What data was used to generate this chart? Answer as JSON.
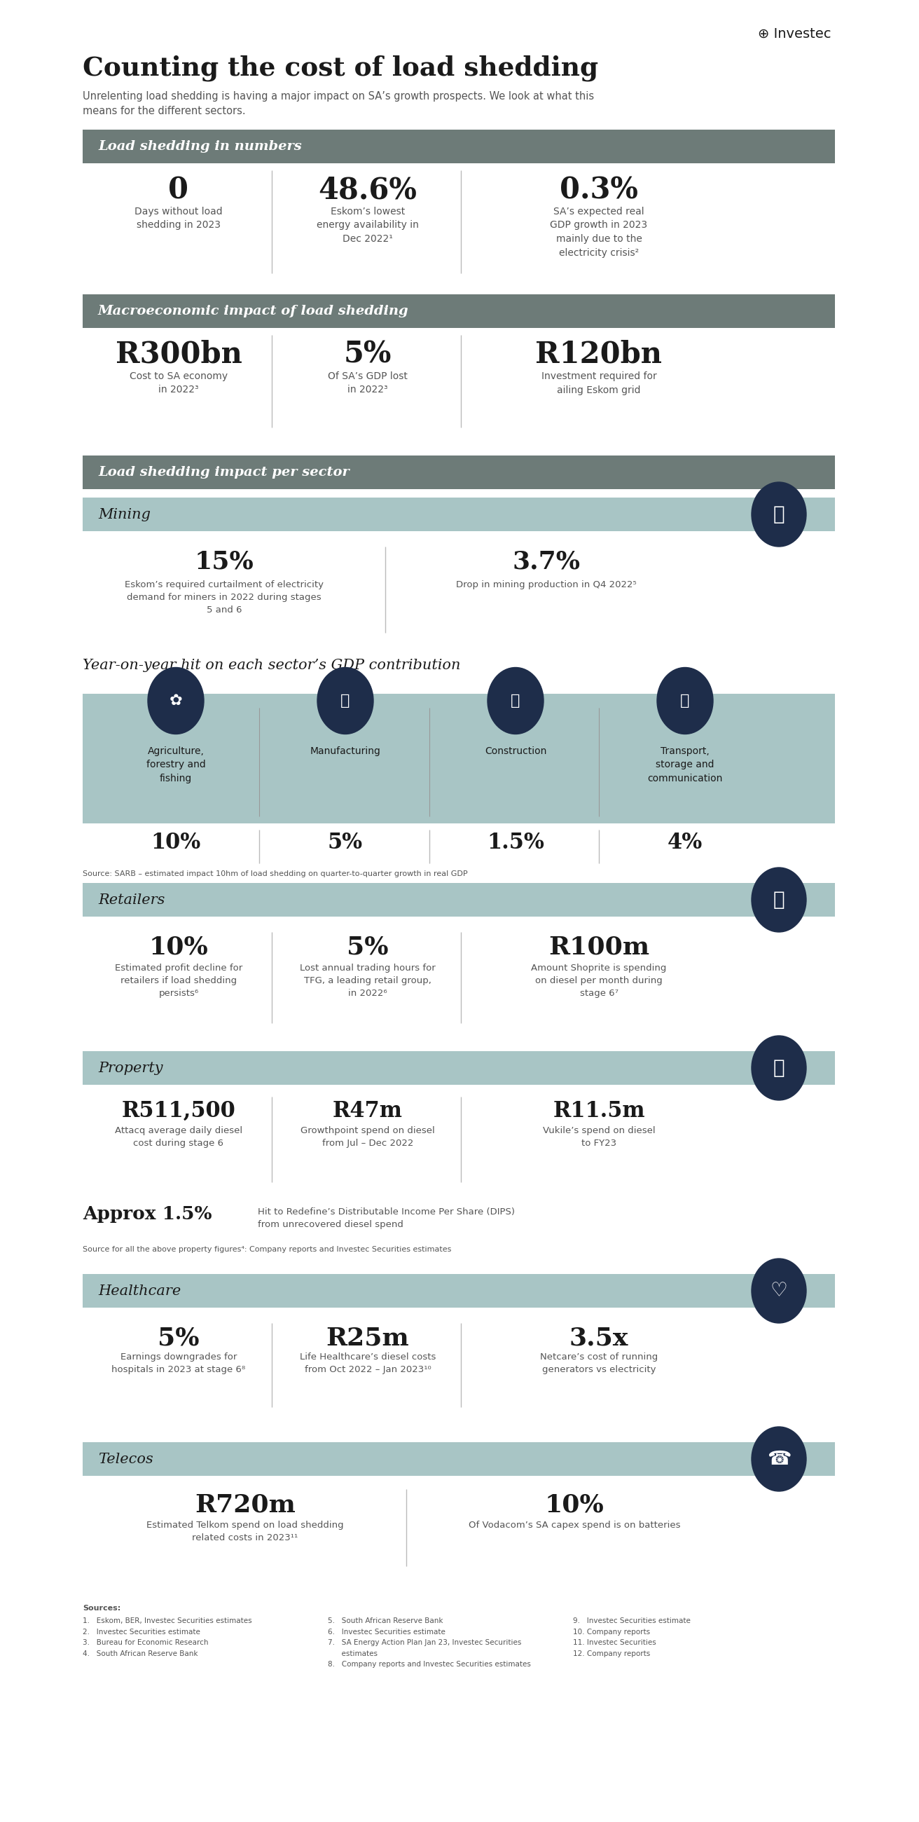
{
  "title": "Counting the cost of load shedding",
  "subtitle": "Unrelenting load shedding is having a major impact on SA’s growth prospects. We look at what this\nmeans for the different sectors.",
  "logo_text": "⊕ Investec",
  "bg_color": "#ffffff",
  "header_bg": "#6d7b78",
  "light_teal": "#a8c5c5",
  "dark_navy": "#1e2d4a",
  "section1_header": "Load shedding in numbers",
  "section1_stats": [
    {
      "value": "0",
      "label": "Days without load\nshedding in 2023"
    },
    {
      "value": "48.6%",
      "label": "Eskom’s lowest\nenergy availability in\nDec 2022¹"
    },
    {
      "value": "0.3%",
      "label": "SA’s expected real\nGDP growth in 2023\nmainly due to the\nelectricity crisis²"
    }
  ],
  "section2_header": "Macroeconomic impact of load shedding",
  "section2_stats": [
    {
      "value": "R300bn",
      "label": "Cost to SA economy\nin 2022³"
    },
    {
      "value": "5%",
      "label": "Of SA’s GDP lost\nin 2022³"
    },
    {
      "value": "R120bn",
      "label": "Investment required for\nailing Eskom grid"
    }
  ],
  "section3_header": "Load shedding impact per sector",
  "mining_header": "Mining",
  "mining_stats": [
    {
      "value": "15%",
      "label": "Eskom’s required curtailment of electricity\ndemand for miners in 2022 during stages\n5 and 6"
    },
    {
      "value": "3.7%",
      "label": "Drop in mining production in Q4 2022⁵"
    }
  ],
  "gdp_title": "Year-on-year hit on each sector’s GDP contribution",
  "gdp_sectors": [
    {
      "name": "Agriculture,\nforestry and\nfishing",
      "value": "10%"
    },
    {
      "name": "Manufacturing",
      "value": "5%"
    },
    {
      "name": "Construction",
      "value": "1.5%"
    },
    {
      "name": "Transport,\nstorage and\ncommunication",
      "value": "4%"
    }
  ],
  "gdp_source": "Source: SARB – estimated impact 10hm of load shedding on quarter-to-quarter growth in real GDP",
  "retailers_header": "Retailers",
  "retailers_stats": [
    {
      "value": "10%",
      "label": "Estimated profit decline for\nretailers if load shedding\npersists⁶"
    },
    {
      "value": "5%",
      "label": "Lost annual trading hours for\nTFG, a leading retail group,\nin 2022⁶"
    },
    {
      "value": "R100m",
      "label": "Amount Shoprite is spending\non diesel per month during\nstage 6⁷"
    }
  ],
  "property_header": "Property",
  "property_stats": [
    {
      "value": "R511,500",
      "label": "Attacq average daily diesel\ncost during stage 6"
    },
    {
      "value": "R47m",
      "label": "Growthpoint spend on diesel\nfrom Jul – Dec 2022"
    },
    {
      "value": "R11.5m",
      "label": "Vukile’s spend on diesel\nto FY23"
    }
  ],
  "property_extra": "Approx 1.5%",
  "property_extra_label": "Hit to Redefine’s Distributable Income Per Share (DIPS)\nfrom unrecovered diesel spend",
  "property_source": "Source for all the above property figures⁴: Company reports and Investec Securities estimates",
  "healthcare_header": "Healthcare",
  "healthcare_stats": [
    {
      "value": "5%",
      "label": "Earnings downgrades for\nhospitals in 2023 at stage 6⁸"
    },
    {
      "value": "R25m",
      "label": "Life Healthcare’s diesel costs\nfrom Oct 2022 – Jan 2023¹⁰"
    },
    {
      "value": "3.5x",
      "label": "Netcare’s cost of running\ngenerators vs electricity"
    }
  ],
  "telecos_header": "Telecos",
  "telecos_stats": [
    {
      "value": "R720m",
      "label": "Estimated Telkom spend on load shedding\nrelated costs in 2023¹¹"
    },
    {
      "value": "10%",
      "label": "Of Vodacom’s SA capex spend is on batteries"
    }
  ],
  "sources_label": "Sources:",
  "sources_col1": "1.   Eskom, BER, Investec Securities estimates\n2.   Investec Securities estimate\n3.   Bureau for Economic Research\n4.   South African Reserve Bank",
  "sources_col2": "5.   South African Reserve Bank\n6.   Investec Securities estimate\n7.   SA Energy Action Plan Jan 23, Investec Securities\n      estimates\n8.   Company reports and Investec Securities estimates",
  "sources_col3": "9.   Investec Securities estimate\n10. Company reports\n11. Investec Securities\n12. Company reports"
}
